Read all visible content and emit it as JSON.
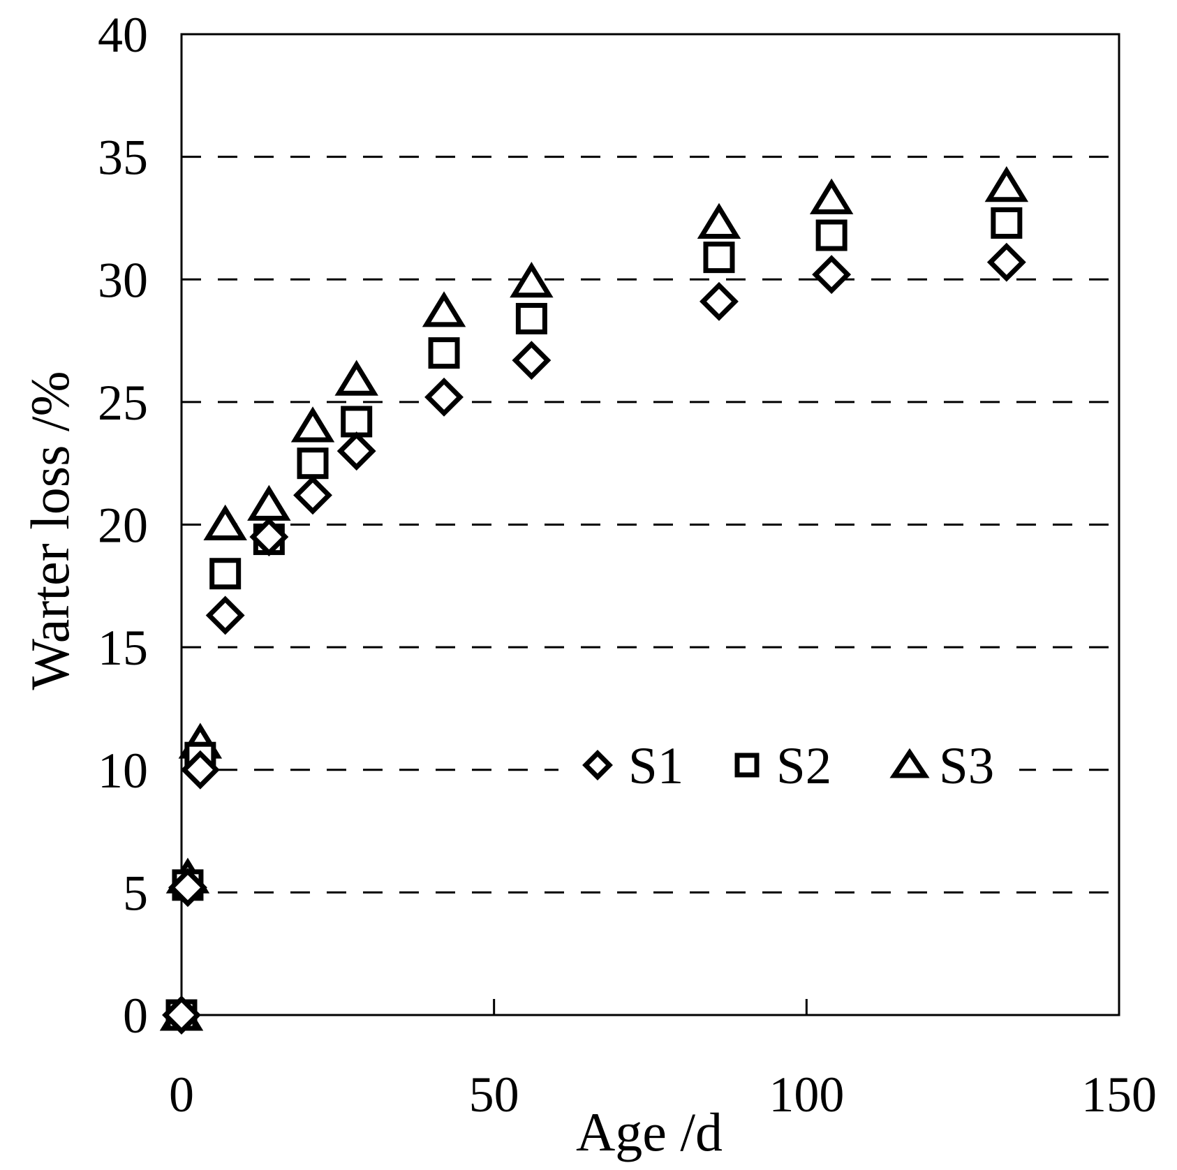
{
  "colors": {
    "foreground": "#000000",
    "background": "#ffffff"
  },
  "chart_data": {
    "type": "scatter",
    "title": "",
    "xlabel": "Age /d",
    "ylabel": "Warter loss /%",
    "xlim": [
      0,
      150
    ],
    "ylim": [
      0,
      40
    ],
    "x_ticks": [
      0,
      50,
      100,
      150
    ],
    "y_ticks": [
      0,
      5,
      10,
      15,
      20,
      25,
      30,
      35,
      40
    ],
    "gridlines": {
      "y_values": [
        5,
        10,
        15,
        20,
        25,
        30,
        35
      ],
      "style": "dashed"
    },
    "legend": {
      "position": "inside right, on the 10% gridline",
      "entries": [
        {
          "label": "S1",
          "marker": "diamond"
        },
        {
          "label": "S2",
          "marker": "square"
        },
        {
          "label": "S3",
          "marker": "triangle"
        }
      ]
    },
    "series": [
      {
        "name": "S1",
        "marker": "diamond",
        "points": [
          [
            0,
            0
          ],
          [
            1,
            5.2
          ],
          [
            3,
            10.0
          ],
          [
            7,
            16.3
          ],
          [
            14,
            19.5
          ],
          [
            21,
            21.2
          ],
          [
            28,
            23.0
          ],
          [
            42,
            25.2
          ],
          [
            56,
            26.7
          ],
          [
            86,
            29.1
          ],
          [
            104,
            30.2
          ],
          [
            132,
            30.7
          ]
        ]
      },
      {
        "name": "S2",
        "marker": "square",
        "points": [
          [
            0,
            0
          ],
          [
            1,
            5.3
          ],
          [
            3,
            10.5
          ],
          [
            7,
            18.0
          ],
          [
            14,
            19.4
          ],
          [
            21,
            22.5
          ],
          [
            28,
            24.2
          ],
          [
            42,
            27.0
          ],
          [
            56,
            28.4
          ],
          [
            86,
            30.9
          ],
          [
            104,
            31.8
          ],
          [
            132,
            32.3
          ]
        ]
      },
      {
        "name": "S3",
        "marker": "triangle",
        "points": [
          [
            0,
            0
          ],
          [
            1,
            5.6
          ],
          [
            3,
            11.1
          ],
          [
            7,
            20.0
          ],
          [
            14,
            20.8
          ],
          [
            21,
            24.0
          ],
          [
            28,
            25.9
          ],
          [
            42,
            28.7
          ],
          [
            56,
            29.9
          ],
          [
            86,
            32.3
          ],
          [
            104,
            33.3
          ],
          [
            132,
            33.8
          ]
        ]
      }
    ]
  }
}
